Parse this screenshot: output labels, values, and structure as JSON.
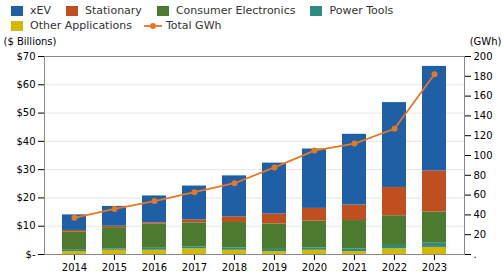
{
  "chart_data": {
    "type": "bar",
    "stacked": true,
    "categories": [
      "2014",
      "2015",
      "2016",
      "2017",
      "2018",
      "2019",
      "2020",
      "2021",
      "2022",
      "2023"
    ],
    "series": [
      {
        "name": "Other Applications",
        "color": "#d4b800",
        "values": [
          1.0,
          1.5,
          1.5,
          2.0,
          1.5,
          1.0,
          1.5,
          1.0,
          2.0,
          2.5
        ]
      },
      {
        "name": "Power Tools",
        "color": "#2e8b80",
        "values": [
          0.5,
          0.5,
          0.7,
          0.7,
          0.8,
          0.8,
          0.8,
          1.0,
          1.2,
          1.5
        ]
      },
      {
        "name": "Consumer Electronics",
        "color": "#4c7a2e",
        "values": [
          6.5,
          7.5,
          8.5,
          8.5,
          9.0,
          9.0,
          9.5,
          10.0,
          10.5,
          11.0
        ]
      },
      {
        "name": "Stationary",
        "color": "#bf4f1f",
        "values": [
          0.5,
          0.5,
          0.5,
          1.0,
          2.0,
          3.5,
          4.5,
          5.5,
          10.0,
          14.5
        ]
      },
      {
        "name": "xEV",
        "color": "#1f5fa6",
        "values": [
          5.5,
          7.0,
          9.5,
          12.0,
          14.5,
          18.0,
          21.0,
          25.0,
          30.0,
          37.0
        ]
      },
      {
        "name": "Total GWh",
        "type": "line",
        "axis": "y2",
        "color": "#e87722",
        "marker": "circle",
        "values": [
          37,
          46,
          54,
          63,
          72,
          88,
          105,
          112,
          127,
          182
        ]
      }
    ],
    "ylabel": "($ Billions)",
    "y2label": "(GWh)",
    "ylim": [
      0,
      70
    ],
    "yticks": [
      {
        "value": 0,
        "label": "$-"
      },
      {
        "value": 10,
        "label": "$10"
      },
      {
        "value": 20,
        "label": "$20"
      },
      {
        "value": 30,
        "label": "$30"
      },
      {
        "value": 40,
        "label": "$40"
      },
      {
        "value": 50,
        "label": "$50"
      },
      {
        "value": 60,
        "label": "$60"
      },
      {
        "value": 70,
        "label": "$70"
      }
    ],
    "y2lim": [
      0,
      200
    ],
    "y2ticks": [
      {
        "value": 0,
        "label": "."
      },
      20,
      40,
      60,
      80,
      100,
      120,
      140,
      160,
      180,
      200
    ],
    "grid": true,
    "legend": "upper left"
  }
}
